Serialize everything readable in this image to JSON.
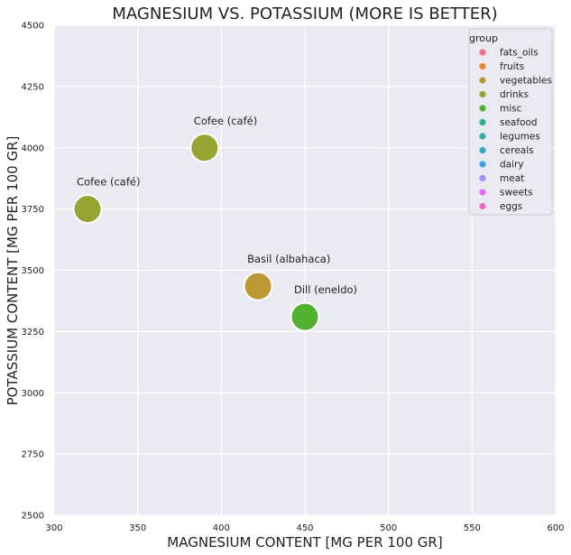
{
  "chart_data": {
    "type": "scatter",
    "title": "MAGNESIUM VS. POTASSIUM (MORE IS BETTER)",
    "xlabel": "MAGNESIUM CONTENT [MG PER 100 GR]",
    "ylabel": "POTASSIUM CONTENT [MG PER 100 GR]",
    "xlim": [
      300,
      600
    ],
    "ylim": [
      2500,
      4500
    ],
    "xticks": [
      300,
      350,
      400,
      450,
      500,
      550,
      600
    ],
    "yticks": [
      2500,
      2750,
      3000,
      3250,
      3500,
      3750,
      4000,
      4250,
      4500
    ],
    "grid": true,
    "legend": {
      "title": "group",
      "position": "top-right",
      "entries": [
        {
          "name": "fats_oils",
          "color": "#f77189"
        },
        {
          "name": "fruits",
          "color": "#e7872f"
        },
        {
          "name": "vegetables",
          "color": "#bb9832"
        },
        {
          "name": "drinks",
          "color": "#97a431"
        },
        {
          "name": "misc",
          "color": "#50b131"
        },
        {
          "name": "seafood",
          "color": "#34af8b"
        },
        {
          "name": "legumes",
          "color": "#36ada4"
        },
        {
          "name": "cereals",
          "color": "#38aabe"
        },
        {
          "name": "dairy",
          "color": "#3ba3ec"
        },
        {
          "name": "meat",
          "color": "#a48cf4"
        },
        {
          "name": "sweets",
          "color": "#e866f4"
        },
        {
          "name": "eggs",
          "color": "#f668c2"
        }
      ]
    },
    "points": [
      {
        "label": "Cofee (café)",
        "x": 390,
        "y": 4000,
        "group": "drinks"
      },
      {
        "label": "Cofee (café)",
        "x": 320,
        "y": 3750,
        "group": "drinks"
      },
      {
        "label": "Basil (albahaca)",
        "x": 422,
        "y": 3435,
        "group": "vegetables"
      },
      {
        "label": "Dill (eneldo)",
        "x": 450,
        "y": 3310,
        "group": "misc"
      }
    ]
  }
}
